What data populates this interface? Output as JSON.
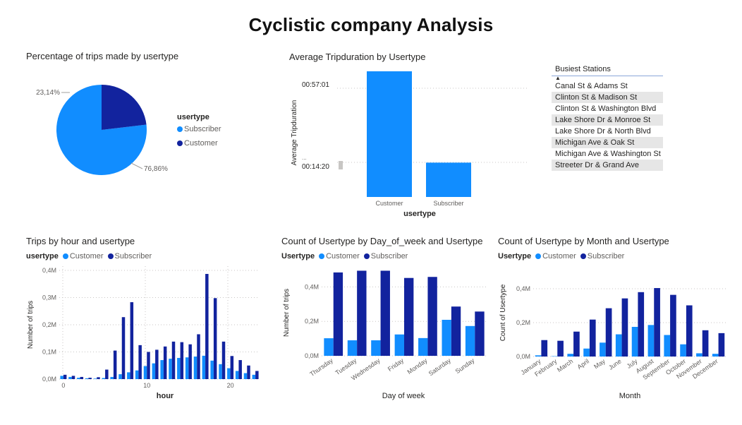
{
  "title": "Cyclistic company Analysis",
  "colors": {
    "customer": "#118dff",
    "subscriber": "#12239e",
    "grid": "#c8c6c4",
    "axis_text": "#605e5c"
  },
  "pie": {
    "title": "Percentage of trips made by usertype",
    "legend_title": "usertype",
    "chart_data": {
      "type": "pie",
      "labels": [
        "Subscriber",
        "Customer"
      ],
      "values": [
        76.86,
        23.14
      ],
      "data_labels": [
        "76,86%",
        "23,14%"
      ]
    }
  },
  "avg_duration": {
    "title": "Average Tripduration by Usertype",
    "ylabel": "Average Tripduration",
    "xlabel": "usertype",
    "y_ticks": [
      "00:14:20",
      "00:57:01"
    ],
    "axis_ellipsis": "...",
    "chart_data": {
      "type": "bar",
      "categories": [
        "Customer",
        "Subscriber"
      ],
      "values": [
        3910,
        1040
      ],
      "value_unit": "seconds"
    }
  },
  "slicer": {
    "title": "Busiest Stations",
    "caret": "▲",
    "items": [
      "Canal St & Adams St",
      "Clinton St & Madison St",
      "Clinton St & Washington Blvd",
      "Lake Shore Dr & Monroe St",
      "Lake Shore Dr & North Blvd",
      "Michigan Ave & Oak St",
      "Michigan Ave & Washington St",
      "Streeter Dr & Grand Ave"
    ]
  },
  "hourly": {
    "title": "Trips by hour and usertype",
    "legend_title": "usertype",
    "ylabel": "Number of trips",
    "xlabel": "hour",
    "y_tick_labels": [
      "0,0M",
      "0,1M",
      "0,2M",
      "0,3M",
      "0,4M"
    ],
    "x_tick_labels": [
      "0",
      "10",
      "20"
    ],
    "chart_data": {
      "type": "bar",
      "x": [
        0,
        1,
        2,
        3,
        4,
        5,
        6,
        7,
        8,
        9,
        10,
        11,
        12,
        13,
        14,
        15,
        16,
        17,
        18,
        19,
        20,
        21,
        22,
        23
      ],
      "ylim": [
        0,
        0.4
      ],
      "series": [
        {
          "name": "Customer",
          "values": [
            0.012,
            0.008,
            0.005,
            0.003,
            0.002,
            0.004,
            0.008,
            0.018,
            0.025,
            0.032,
            0.048,
            0.058,
            0.07,
            0.075,
            0.078,
            0.08,
            0.083,
            0.086,
            0.068,
            0.055,
            0.04,
            0.03,
            0.022,
            0.016
          ]
        },
        {
          "name": "Subscriber",
          "values": [
            0.016,
            0.012,
            0.008,
            0.005,
            0.007,
            0.035,
            0.105,
            0.228,
            0.283,
            0.125,
            0.1,
            0.108,
            0.12,
            0.138,
            0.136,
            0.128,
            0.165,
            0.387,
            0.298,
            0.138,
            0.085,
            0.07,
            0.05,
            0.03
          ]
        }
      ]
    }
  },
  "weekday": {
    "title": "Count of Usertype by Day_of_week and Usertype",
    "legend_title": "Usertype",
    "ylabel": "Number of trips",
    "xlabel": "Day of week",
    "y_tick_labels": [
      "0,0M",
      "0,2M",
      "0,4M"
    ],
    "chart_data": {
      "type": "bar",
      "categories": [
        "Thursday",
        "Tuesday",
        "Wednesday",
        "Friday",
        "Monday",
        "Saturday",
        "Sunday"
      ],
      "ylim": [
        0,
        0.5
      ],
      "series": [
        {
          "name": "Customer",
          "values": [
            0.102,
            0.09,
            0.09,
            0.124,
            0.103,
            0.209,
            0.173
          ]
        },
        {
          "name": "Subscriber",
          "values": [
            0.484,
            0.494,
            0.494,
            0.452,
            0.458,
            0.286,
            0.257
          ]
        }
      ]
    }
  },
  "monthly": {
    "title": "Count of Usertype by Month and Usertype",
    "legend_title": "Usertype",
    "ylabel": "Count of Usertype",
    "xlabel": "Month",
    "y_tick_labels": [
      "0,0M",
      "0,2M",
      "0,4M"
    ],
    "chart_data": {
      "type": "bar",
      "categories": [
        "January",
        "February",
        "March",
        "April",
        "May",
        "June",
        "July",
        "August",
        "September",
        "October",
        "November",
        "December"
      ],
      "ylim": [
        0,
        0.5
      ],
      "series": [
        {
          "name": "Customer",
          "values": [
            0.007,
            0.002,
            0.016,
            0.047,
            0.082,
            0.131,
            0.175,
            0.186,
            0.127,
            0.072,
            0.019,
            0.016
          ]
        },
        {
          "name": "Subscriber",
          "values": [
            0.097,
            0.093,
            0.147,
            0.218,
            0.285,
            0.343,
            0.38,
            0.404,
            0.364,
            0.302,
            0.155,
            0.138
          ]
        }
      ]
    }
  }
}
